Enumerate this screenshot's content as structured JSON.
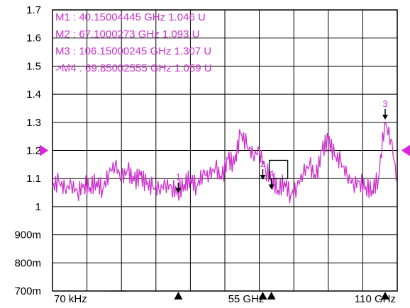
{
  "chart_data": {
    "type": "line",
    "title": "",
    "xlabel": "",
    "ylabel": "",
    "x_ticks": [
      "70 kHz",
      "55 GHz",
      "110 GHz"
    ],
    "y_ticks": [
      "700m",
      "800m",
      "900m",
      "1",
      "1.1",
      "1.2",
      "1.3",
      "1.4",
      "1.5",
      "1.6",
      "1.7"
    ],
    "xlim": [
      7e-05,
      110
    ],
    "ylim": [
      0.7,
      1.7
    ],
    "grid": true,
    "reference_level": 1.2,
    "series": [
      {
        "color": "#cc33cc",
        "x": [
          0,
          2,
          4,
          6,
          8,
          10,
          12,
          14,
          16,
          18,
          20,
          22,
          24,
          26,
          28,
          30,
          32,
          34,
          36,
          38,
          40,
          42,
          44,
          46,
          48,
          50,
          52,
          54,
          56,
          58,
          60,
          62,
          64,
          66,
          68,
          70,
          72,
          74,
          76,
          78,
          80,
          82,
          84,
          86,
          88,
          90,
          92,
          94,
          96,
          98,
          100,
          102,
          104,
          106,
          108,
          110
        ],
        "values": [
          1.07,
          1.09,
          1.06,
          1.08,
          1.05,
          1.08,
          1.07,
          1.09,
          1.06,
          1.12,
          1.15,
          1.1,
          1.13,
          1.09,
          1.11,
          1.08,
          1.07,
          1.06,
          1.08,
          1.07,
          1.05,
          1.08,
          1.1,
          1.07,
          1.12,
          1.11,
          1.14,
          1.1,
          1.17,
          1.15,
          1.26,
          1.22,
          1.18,
          1.2,
          1.13,
          1.1,
          1.06,
          1.09,
          1.04,
          1.07,
          1.12,
          1.15,
          1.1,
          1.2,
          1.24,
          1.18,
          1.16,
          1.11,
          1.08,
          1.09,
          1.07,
          1.06,
          1.1,
          1.3,
          1.24,
          1.09
        ]
      }
    ],
    "markers": [
      {
        "id": "1",
        "label": "M1 :  40.15004445 GHz  1.046  U",
        "x": 40.15004445,
        "y": 1.046
      },
      {
        "id": "2",
        "label": "M2 :  67.1000273 GHz  1.093  U",
        "x": 67.1000273,
        "y": 1.093
      },
      {
        "id": "3",
        "label": "M3 :  106.15000245 GHz  1.307  U",
        "x": 106.15000245,
        "y": 1.307
      },
      {
        "id": "4",
        "label": ">M4 :  69.85002555 GHz  1.059  U",
        "x": 69.85002555,
        "y": 1.059
      }
    ]
  }
}
